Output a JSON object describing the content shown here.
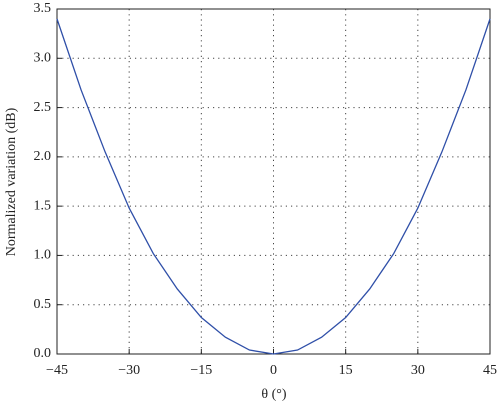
{
  "chart_data": {
    "type": "line",
    "x_label": "θ (°)",
    "y_label": "Normalized variation (dB)",
    "x": [
      -45,
      -40,
      -35,
      -30,
      -25,
      -20,
      -15,
      -10,
      -5,
      0,
      5,
      10,
      15,
      20,
      25,
      30,
      35,
      40,
      45
    ],
    "series": [
      {
        "color": "#2f4fa8",
        "values": [
          3.4,
          2.68,
          2.05,
          1.48,
          1.02,
          0.66,
          0.37,
          0.17,
          0.04,
          0.0,
          0.04,
          0.17,
          0.37,
          0.66,
          1.02,
          1.48,
          2.05,
          2.68,
          3.4
        ]
      }
    ],
    "xlim": [
      -45,
      45
    ],
    "xticks": [
      {
        "value": -45,
        "label": "−45"
      },
      {
        "value": -30,
        "label": "−30"
      },
      {
        "value": -15,
        "label": "−15"
      },
      0,
      15,
      30,
      45
    ],
    "ylim": [
      0,
      3.5
    ],
    "yticks": [
      {
        "value": 0,
        "label": "0.0"
      },
      0.5,
      {
        "value": 1,
        "label": "1.0"
      },
      1.5,
      {
        "value": 2,
        "label": "2.0"
      },
      2.5,
      {
        "value": 3,
        "label": "3.0"
      },
      3.5
    ],
    "grid": true
  }
}
